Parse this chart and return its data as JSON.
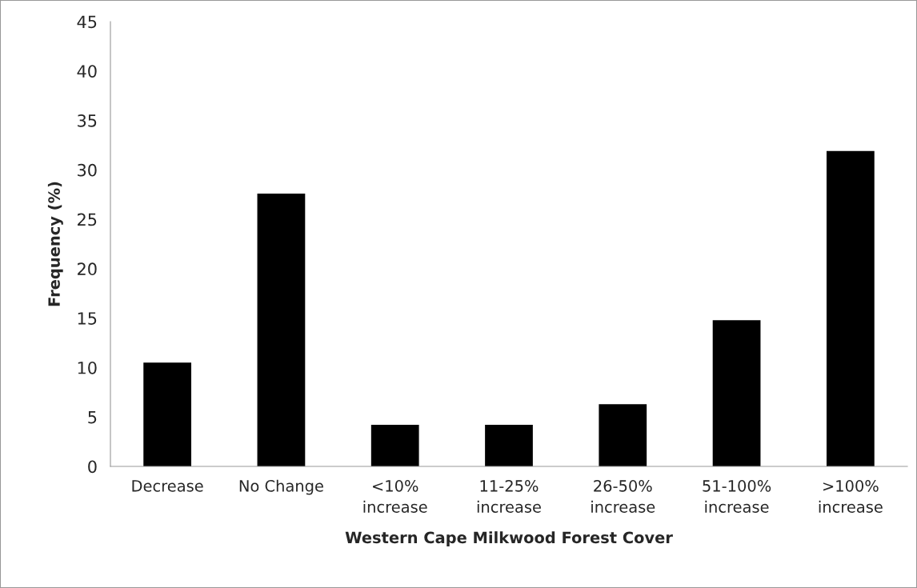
{
  "chart_data": {
    "type": "bar",
    "xlabel": "Western Cape Milkwood Forest Cover",
    "ylabel": "Frequency (%)",
    "categories": [
      "Decrease",
      "No Change",
      "<10%\nincrease",
      "11-25%\nincrease",
      "26-50%\nincrease",
      "51-100%\nincrease",
      ">100%\nincrease"
    ],
    "values": [
      10.5,
      27.6,
      4.2,
      4.2,
      6.3,
      14.8,
      31.9
    ],
    "color": "#000000",
    "ylim": [
      0,
      45
    ],
    "yticks": [
      0,
      5,
      10,
      15,
      20,
      25,
      30,
      35,
      40,
      45
    ],
    "grid": false,
    "legend": false
  }
}
